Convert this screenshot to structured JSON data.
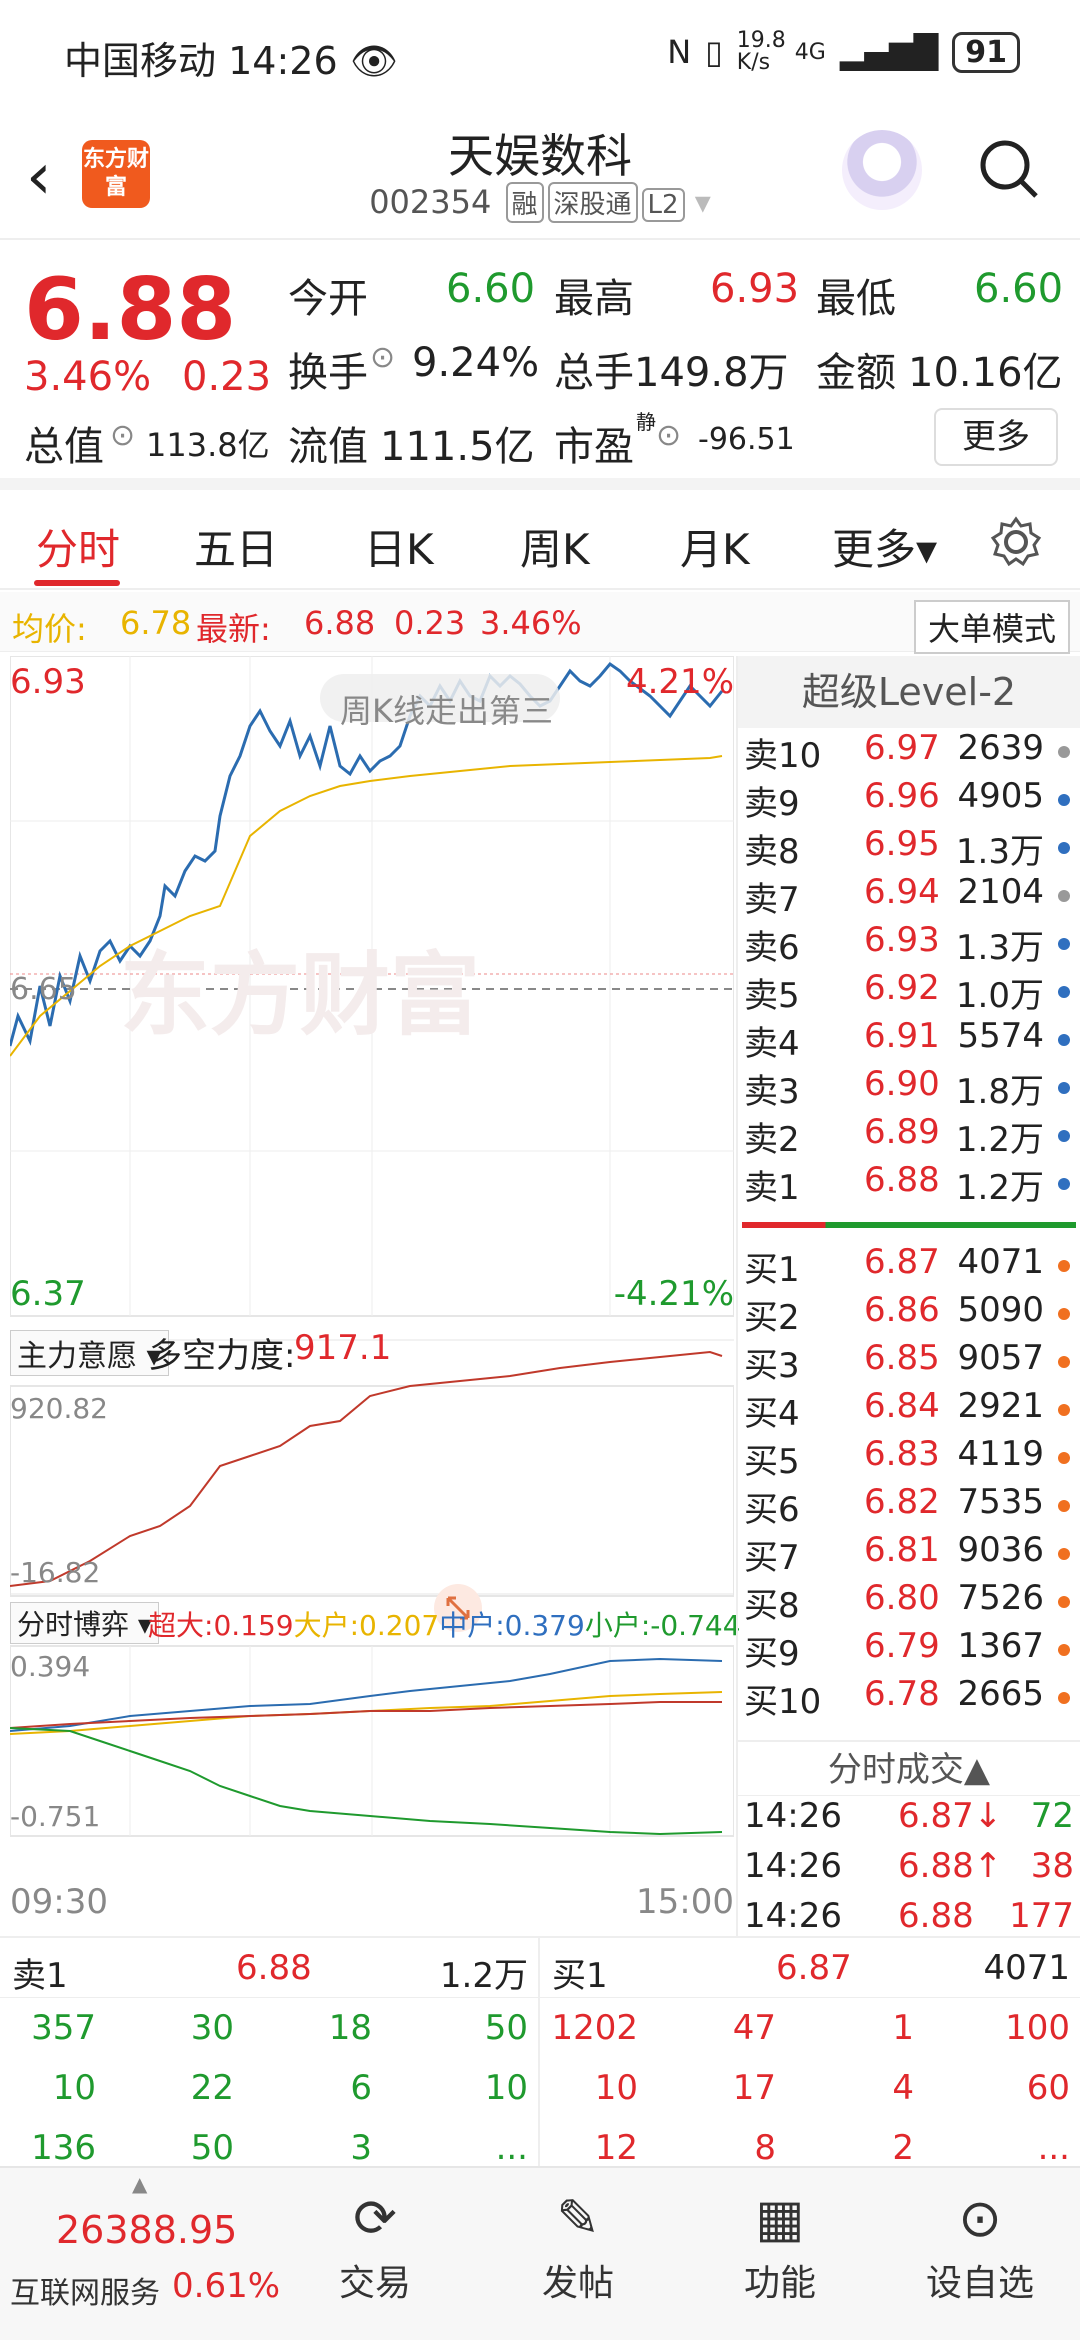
{
  "status": {
    "carrier": "中国移动",
    "time": "14:26",
    "net_speed": "19.8 K/s",
    "net_type": "4G",
    "battery": "91"
  },
  "nav": {
    "title": "天娱数科",
    "code": "002354",
    "tags": [
      "融",
      "深股通",
      "L2"
    ],
    "logo": "东方财富"
  },
  "quote": {
    "price": "6.88",
    "pct": "3.46%",
    "chg": "0.23",
    "rows": [
      [
        {
          "k": "今开",
          "v": "6.60",
          "c": "green"
        },
        {
          "k": "最高",
          "v": "6.93",
          "c": "red"
        },
        {
          "k": "最低",
          "v": "6.60",
          "c": "green"
        }
      ],
      [
        {
          "k": "换手",
          "v": "9.24%",
          "c": ""
        },
        {
          "k": "总手",
          "v": "149.8万",
          "c": ""
        },
        {
          "k": "金额",
          "v": "10.16亿",
          "c": ""
        }
      ]
    ],
    "total_label": "总值",
    "total": "113.8亿",
    "float_label": "流值",
    "float": "111.5亿",
    "pe_label": "市盈",
    "pe_tag": "静",
    "pe": "-96.51",
    "more": "更多"
  },
  "tabs": [
    "分时",
    "五日",
    "日K",
    "周K",
    "月K",
    "更多▾"
  ],
  "avg": {
    "avg_label": "均价:",
    "avg": "6.78",
    "new_label": "最新:",
    "new": "6.88",
    "chg": "0.23",
    "pct": "3.46%",
    "mode": "大单模式"
  },
  "chart": {
    "high": "6.93",
    "low": "6.37",
    "pre": "6.65",
    "up_pct": "4.21%",
    "down_pct": "-4.21%",
    "watermark": "东方财富",
    "notice": "周K线走出第三",
    "sub1_label": "主力意愿",
    "sub1_title": "多空力度:",
    "sub1_val": "917.1",
    "sub1_max": "920.82",
    "sub1_min": "-16.82",
    "sub2_label": "分时博弈",
    "sub2": [
      {
        "k": "超大:",
        "v": "0.159",
        "c": "#e0282c"
      },
      {
        "k": "大户:",
        "v": "0.207",
        "c": "#e8b400"
      },
      {
        "k": "中户:",
        "v": "0.379",
        "c": "#2f6fbf"
      },
      {
        "k": "小户:",
        "v": "-0.744",
        "c": "#1f9a2e"
      }
    ],
    "sub2_max": "0.394",
    "sub2_min": "-0.751",
    "t_start": "09:30",
    "t_end": "15:00"
  },
  "book": {
    "title": "超级Level-2",
    "asks": [
      [
        "卖10",
        "6.97",
        "2639",
        "#999"
      ],
      [
        "卖9",
        "6.96",
        "4905",
        "#2f6fbf"
      ],
      [
        "卖8",
        "6.95",
        "1.3万",
        "#2f6fbf"
      ],
      [
        "卖7",
        "6.94",
        "2104",
        "#999"
      ],
      [
        "卖6",
        "6.93",
        "1.3万",
        "#2f6fbf"
      ],
      [
        "卖5",
        "6.92",
        "1.0万",
        "#2f6fbf"
      ],
      [
        "卖4",
        "6.91",
        "5574",
        "#2f6fbf"
      ],
      [
        "卖3",
        "6.90",
        "1.8万",
        "#2f6fbf"
      ],
      [
        "卖2",
        "6.89",
        "1.2万",
        "#2f6fbf"
      ],
      [
        "卖1",
        "6.88",
        "1.2万",
        "#2f6fbf"
      ]
    ],
    "bids": [
      [
        "买1",
        "6.87",
        "4071"
      ],
      [
        "买2",
        "6.86",
        "5090"
      ],
      [
        "买3",
        "6.85",
        "9057"
      ],
      [
        "买4",
        "6.84",
        "2921"
      ],
      [
        "买5",
        "6.83",
        "4119"
      ],
      [
        "买6",
        "6.82",
        "7535"
      ],
      [
        "买7",
        "6.81",
        "9036"
      ],
      [
        "买8",
        "6.80",
        "7526"
      ],
      [
        "买9",
        "6.79",
        "1367"
      ],
      [
        "买10",
        "6.78",
        "2665"
      ]
    ],
    "ticks_title": "分时成交▲",
    "ticks": [
      [
        "14:26",
        "6.87↓",
        "72",
        "green"
      ],
      [
        "14:26",
        "6.88↑",
        "38",
        "red"
      ],
      [
        "14:26",
        "6.88",
        "177",
        "red"
      ]
    ]
  },
  "bottom": {
    "sell_label": "卖1",
    "sell_price": "6.88",
    "sell_vol": "1.2万",
    "buy_label": "买1",
    "buy_price": "6.87",
    "buy_vol": "4071",
    "sell_rows": [
      [
        "357",
        "30",
        "18",
        "50"
      ],
      [
        "10",
        "22",
        "6",
        "10"
      ],
      [
        "136",
        "50",
        "3",
        "..."
      ]
    ],
    "buy_rows": [
      [
        "1202",
        "47",
        "1",
        "100"
      ],
      [
        "10",
        "17",
        "4",
        "60"
      ],
      [
        "12",
        "8",
        "2",
        "..."
      ]
    ]
  },
  "tabbar": {
    "index_val": "26388.95",
    "index_name": "互联网服务",
    "index_pct": "0.61%",
    "items": [
      "交易",
      "发帖",
      "功能",
      "设自选"
    ]
  }
}
